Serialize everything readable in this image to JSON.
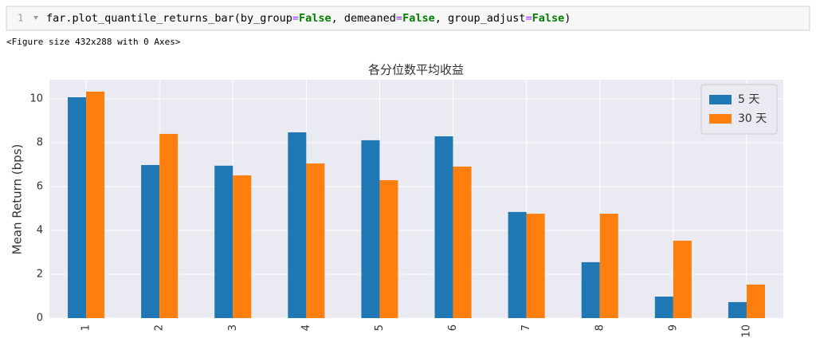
{
  "code_cell": {
    "line_number": "1",
    "tokens": [
      "far.plot_quantile_returns_bar(by_group",
      "=",
      "False",
      ", demeaned",
      "=",
      "False",
      ", group_adjust",
      "=",
      "False",
      ")"
    ]
  },
  "output_text": "<Figure size 432x288 with 0 Axes>",
  "chart_data": {
    "type": "bar",
    "title": "各分位数平均收益",
    "y_label": "Mean Return (bps)",
    "categories": [
      "1",
      "2",
      "3",
      "4",
      "5",
      "6",
      "7",
      "8",
      "9",
      "10"
    ],
    "series": [
      {
        "name": "5 天",
        "color": "#1f77b4",
        "values": [
          10.07,
          6.98,
          6.95,
          8.47,
          8.11,
          8.29,
          4.84,
          2.55,
          0.98,
          0.73
        ]
      },
      {
        "name": "30 天",
        "color": "#ff7f0e",
        "values": [
          10.33,
          8.4,
          6.51,
          7.05,
          6.29,
          6.91,
          4.76,
          4.76,
          3.53,
          1.53
        ]
      }
    ],
    "ylim": [
      0,
      10.87
    ],
    "yticks": [
      0,
      2,
      4,
      6,
      8,
      10
    ],
    "grid": true,
    "legend": "upper right"
  }
}
